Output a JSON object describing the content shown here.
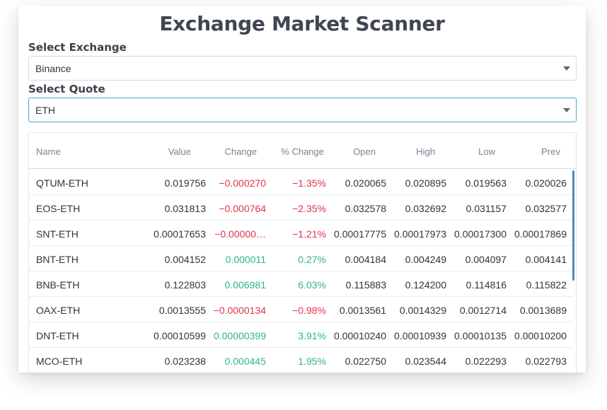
{
  "page_title": "Exchange Market Scanner",
  "exchange": {
    "label": "Select Exchange",
    "value": "Binance"
  },
  "quote": {
    "label": "Select Quote",
    "value": "ETH"
  },
  "table": {
    "headers": {
      "name": "Name",
      "value": "Value",
      "change": "Change",
      "pct": "% Change",
      "open": "Open",
      "high": "High",
      "low": "Low",
      "prev": "Prev"
    },
    "rows": [
      {
        "name": "QTUM-ETH",
        "value": "0.019756",
        "change": "−0.000270",
        "pct": "−1.35%",
        "open": "0.020065",
        "high": "0.020895",
        "low": "0.019563",
        "prev": "0.020026",
        "trend": "neg"
      },
      {
        "name": "EOS-ETH",
        "value": "0.031813",
        "change": "−0.000764",
        "pct": "−2.35%",
        "open": "0.032578",
        "high": "0.032692",
        "low": "0.031157",
        "prev": "0.032577",
        "trend": "neg"
      },
      {
        "name": "SNT-ETH",
        "value": "0.00017653",
        "change": "−0.00000…",
        "pct": "−1.21%",
        "open": "0.00017775",
        "high": "0.00017973",
        "low": "0.00017300",
        "prev": "0.00017869",
        "trend": "neg"
      },
      {
        "name": "BNT-ETH",
        "value": "0.004152",
        "change": "0.000011",
        "pct": "0.27%",
        "open": "0.004184",
        "high": "0.004249",
        "low": "0.004097",
        "prev": "0.004141",
        "trend": "pos"
      },
      {
        "name": "BNB-ETH",
        "value": "0.122803",
        "change": "0.006981",
        "pct": "6.03%",
        "open": "0.115883",
        "high": "0.124200",
        "low": "0.114816",
        "prev": "0.115822",
        "trend": "pos"
      },
      {
        "name": "OAX-ETH",
        "value": "0.0013555",
        "change": "−0.0000134",
        "pct": "−0.98%",
        "open": "0.0013561",
        "high": "0.0014329",
        "low": "0.0012714",
        "prev": "0.0013689",
        "trend": "neg"
      },
      {
        "name": "DNT-ETH",
        "value": "0.00010599",
        "change": "0.00000399",
        "pct": "3.91%",
        "open": "0.00010240",
        "high": "0.00010939",
        "low": "0.00010135",
        "prev": "0.00010200",
        "trend": "pos"
      },
      {
        "name": "MCO-ETH",
        "value": "0.023238",
        "change": "0.000445",
        "pct": "1.95%",
        "open": "0.022750",
        "high": "0.023544",
        "low": "0.022293",
        "prev": "0.022793",
        "trend": "pos"
      }
    ]
  },
  "colors": {
    "negative": "#e0344b",
    "positive": "#2fb87b",
    "title": "#3f4552",
    "focus_border": "#4aa3c9"
  },
  "icons": {
    "dropdown": "chevron-down-icon"
  }
}
